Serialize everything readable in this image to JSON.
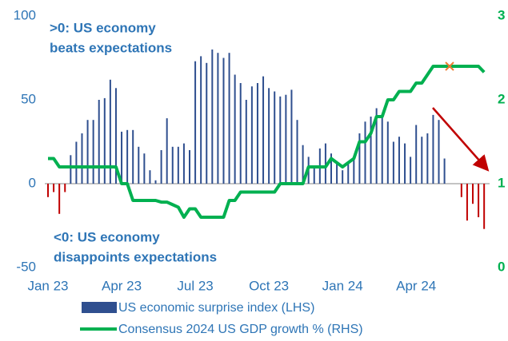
{
  "chart_data": {
    "type": "bar_line",
    "categories": [
      "Jan 23",
      null,
      null,
      null,
      null,
      null,
      null,
      null,
      null,
      null,
      null,
      null,
      null,
      "Apr 23",
      null,
      null,
      null,
      null,
      null,
      null,
      null,
      null,
      null,
      null,
      null,
      null,
      "Jul 23",
      null,
      null,
      null,
      null,
      null,
      null,
      null,
      null,
      null,
      null,
      null,
      null,
      "Oct 23",
      null,
      null,
      null,
      null,
      null,
      null,
      null,
      null,
      null,
      null,
      null,
      null,
      "Jan 24",
      null,
      null,
      null,
      null,
      null,
      null,
      null,
      null,
      null,
      null,
      null,
      null,
      "Apr 24",
      null,
      null,
      null,
      null,
      null,
      null,
      null,
      null,
      null,
      null,
      null,
      null
    ],
    "series": [
      {
        "name": "US economic surprise index (LHS)",
        "color": "#2f4f8f",
        "negative_color": "#c00000",
        "axis": "y",
        "values": [
          -8,
          -5,
          -18,
          -5,
          17,
          25,
          30,
          38,
          38,
          50,
          51,
          62,
          57,
          31,
          32,
          32,
          22,
          18,
          8,
          2,
          20,
          39,
          22,
          22,
          24,
          20,
          73,
          76,
          72,
          80,
          78,
          75,
          78,
          65,
          60,
          50,
          58,
          60,
          64,
          57,
          55,
          52,
          53,
          56,
          38,
          23,
          16,
          10,
          21,
          24,
          18,
          12,
          8,
          12,
          16,
          30,
          37,
          40,
          45,
          41,
          37,
          25,
          28,
          24,
          16,
          35,
          28,
          30,
          41,
          38,
          15,
          0,
          0,
          -8,
          -22,
          -12,
          -20,
          -27
        ]
      },
      {
        "name": "Consensus 2024 US GDP growth % (RHS)",
        "color": "#00b050",
        "axis": "y2",
        "values": [
          1.3,
          1.3,
          1.2,
          1.2,
          1.2,
          1.2,
          1.2,
          1.2,
          1.2,
          1.2,
          1.2,
          1.2,
          1.2,
          1.0,
          1.0,
          0.8,
          0.8,
          0.8,
          0.8,
          0.8,
          0.78,
          0.78,
          0.75,
          0.72,
          0.6,
          0.7,
          0.7,
          0.6,
          0.6,
          0.6,
          0.6,
          0.6,
          0.8,
          0.8,
          0.9,
          0.9,
          0.9,
          0.9,
          0.9,
          0.9,
          0.9,
          1.0,
          1.0,
          1.0,
          1.0,
          1.0,
          1.2,
          1.2,
          1.2,
          1.2,
          1.3,
          1.25,
          1.2,
          1.25,
          1.3,
          1.5,
          1.5,
          1.6,
          1.8,
          1.8,
          2.0,
          2.0,
          2.1,
          2.1,
          2.1,
          2.2,
          2.2,
          2.3,
          2.4,
          2.4,
          2.4,
          2.4,
          2.4,
          2.4,
          2.4,
          2.4,
          2.4,
          2.33
        ]
      }
    ],
    "ylim": [
      -50,
      100
    ],
    "yticks": [
      100,
      50,
      0,
      -50
    ],
    "y2lim": [
      0,
      3
    ],
    "y2ticks": [
      3,
      2,
      1,
      0
    ],
    "annotations": [
      [
        ">0: US economy",
        "beats expectations"
      ],
      [
        "<0: US economy",
        "disappoints expectations"
      ]
    ]
  }
}
